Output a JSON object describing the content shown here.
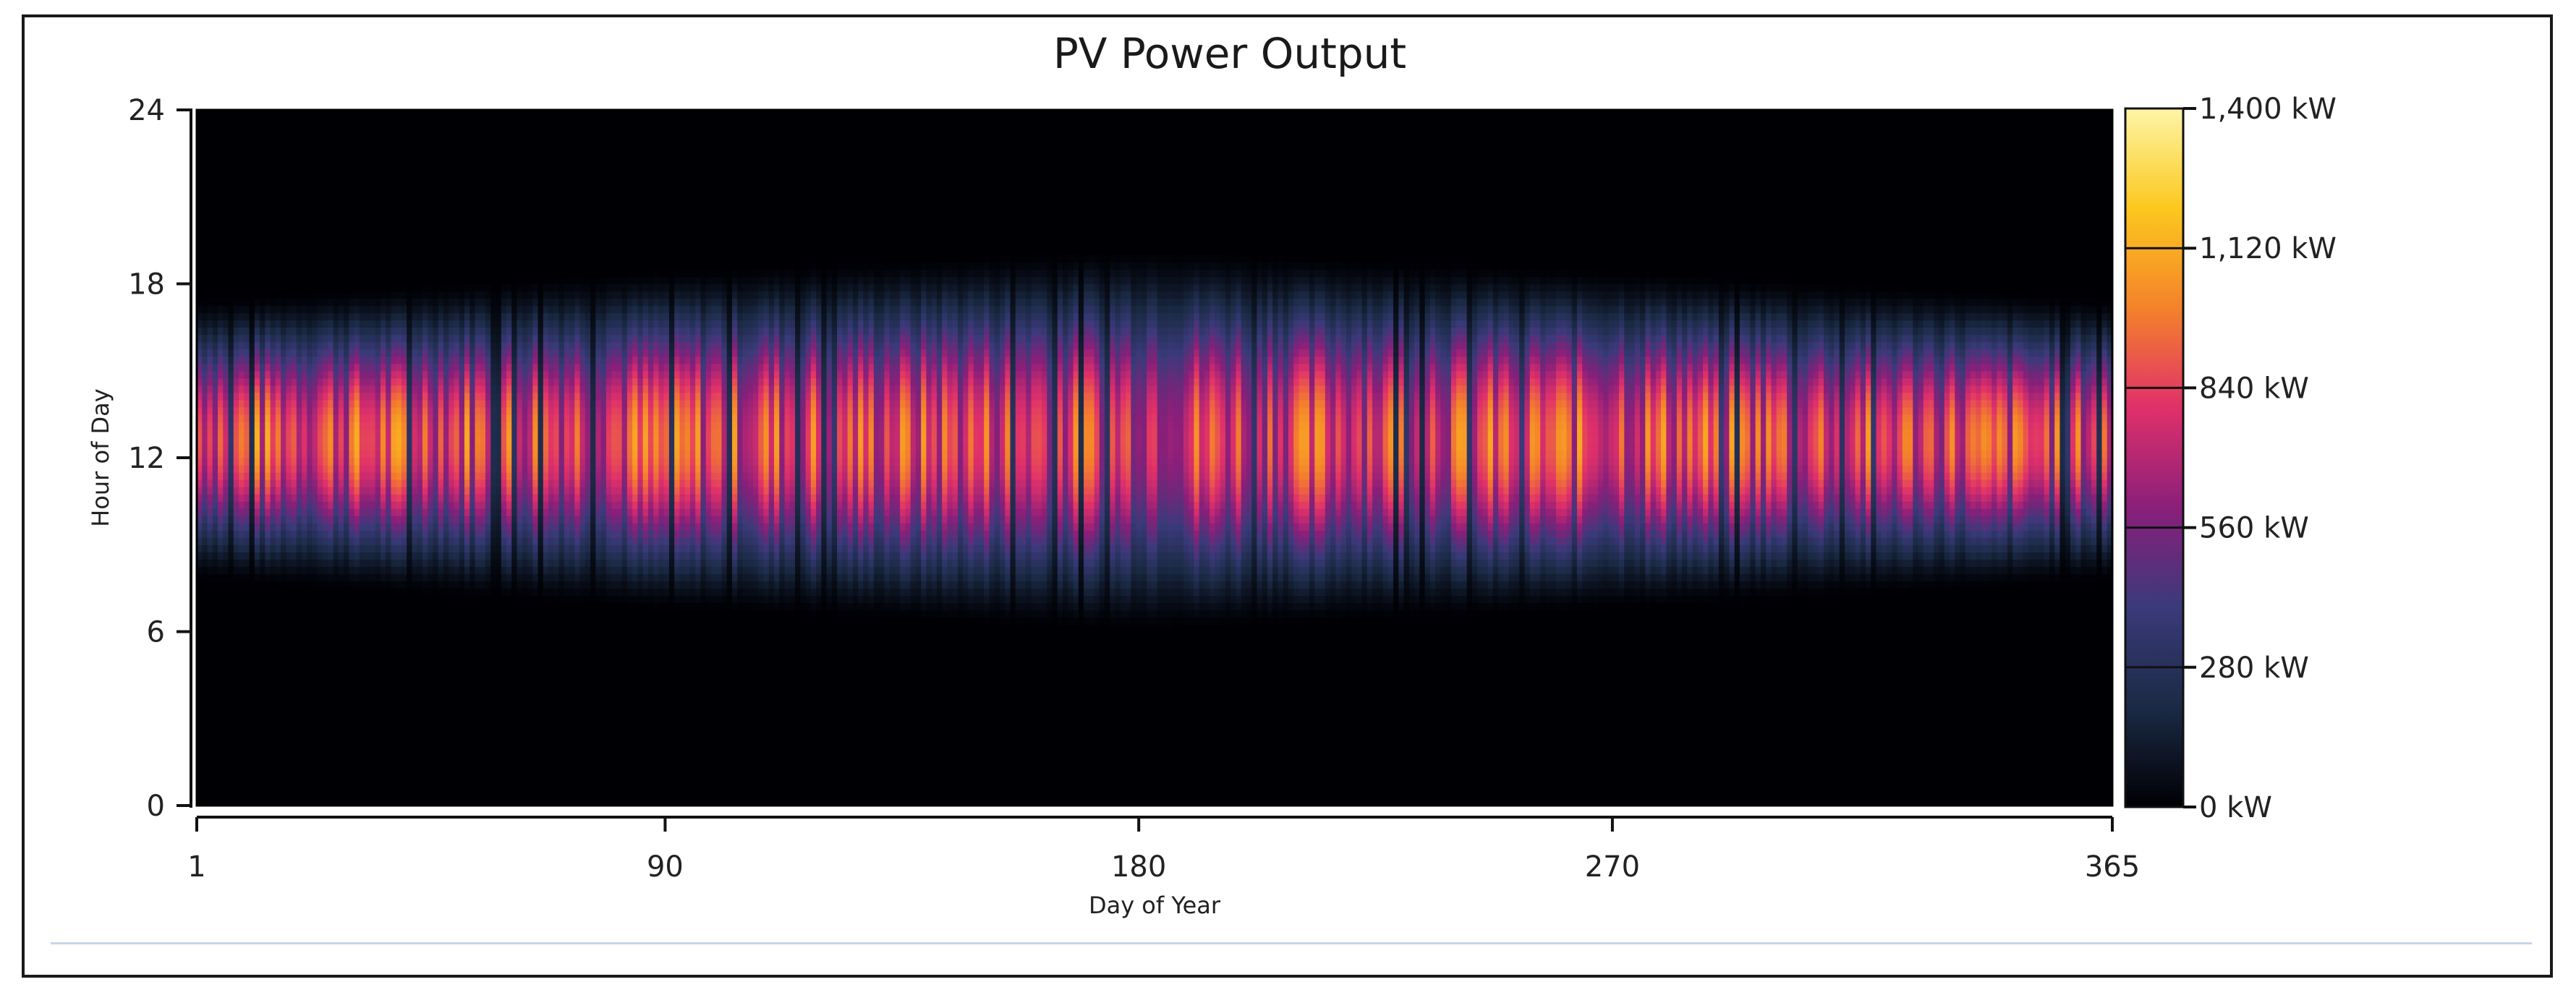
{
  "chart_data": {
    "type": "heatmap",
    "title": "PV Power Output",
    "xlabel": "Day of Year",
    "ylabel": "Hour of Day",
    "x_range": [
      1,
      365
    ],
    "y_range": [
      0,
      24
    ],
    "x_ticks": [
      "1",
      "90",
      "180",
      "270",
      "365"
    ],
    "x_tick_values": [
      1,
      90,
      180,
      270,
      365
    ],
    "y_ticks": [
      "0",
      "6",
      "12",
      "18",
      "24"
    ],
    "y_tick_values": [
      0,
      6,
      12,
      18,
      24
    ],
    "colorbar": {
      "min": 0,
      "max": 1400,
      "unit": "kW",
      "tick_values": [
        0,
        280,
        560,
        840,
        1120,
        1400
      ],
      "tick_labels": [
        "0 kW",
        "280 kW",
        "560 kW",
        "840 kW",
        "1,120 kW",
        "1,400 kW"
      ],
      "colormap": [
        "#000004",
        "#1b2a45",
        "#3a3a7a",
        "#8a1f7a",
        "#e0306a",
        "#f4822a",
        "#fcc81e",
        "#fdf5a8"
      ]
    },
    "seasonal_profile": {
      "day": [
        1,
        90,
        180,
        270,
        365
      ],
      "sunrise_hour": [
        8.0,
        7.0,
        6.0,
        7.0,
        8.0
      ],
      "sunset_hour": [
        17.0,
        18.0,
        18.5,
        18.0,
        17.0
      ],
      "peak_hour": [
        12.5,
        12.5,
        12.5,
        12.5,
        12.5
      ],
      "typical_peak_kW": [
        1080,
        1050,
        1000,
        1060,
        1000
      ]
    },
    "grid": false,
    "legend": "colorbar-right"
  }
}
